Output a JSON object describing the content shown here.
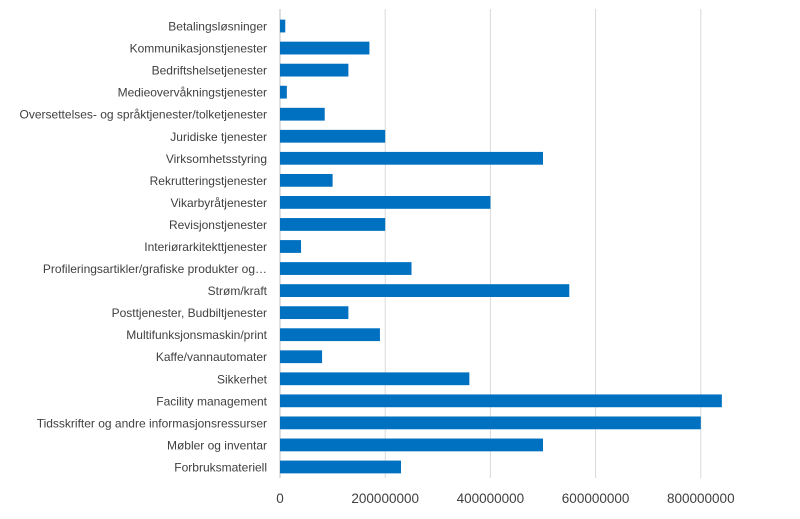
{
  "chart_data": {
    "type": "bar",
    "orientation": "horizontal",
    "categories": [
      "Betalingsløsninger",
      "Kommunikasjonstjenester",
      "Bedriftshelsetjenester",
      "Medieovervåkningstjenester",
      "Oversettelses- og språktjenester/tolketjenester",
      "Juridiske tjenester",
      "Virksomhetsstyring",
      "Rekrutteringstjenester",
      "Vikarbyråtjenester",
      "Revisjonstjenester",
      "Interiørarkitekttjenester",
      "Profileringsartikler/grafiske produkter og…",
      "Strøm/kraft",
      "Posttjenester, Budbiltjenester",
      "Multifunksjonsmaskin/print",
      "Kaffe/vannautomater",
      "Sikkerhet",
      "Facility management",
      "Tidsskrifter og andre informasjonsressurser",
      "Møbler og inventar",
      "Forbruksmateriell"
    ],
    "values": [
      10000000,
      170000000,
      130000000,
      13000000,
      85000000,
      200000000,
      500000000,
      100000000,
      400000000,
      200000000,
      40000000,
      250000000,
      550000000,
      130000000,
      190000000,
      80000000,
      360000000,
      840000000,
      800000000,
      500000000,
      230000000
    ],
    "x_ticks": [
      "0",
      "200000000",
      "400000000",
      "600000000",
      "800000000"
    ],
    "xlim": [
      0,
      1000000000
    ],
    "title": "",
    "xlabel": "",
    "ylabel": "",
    "grid": "vertical",
    "legend": "none",
    "bar_color": "#0070c0"
  }
}
